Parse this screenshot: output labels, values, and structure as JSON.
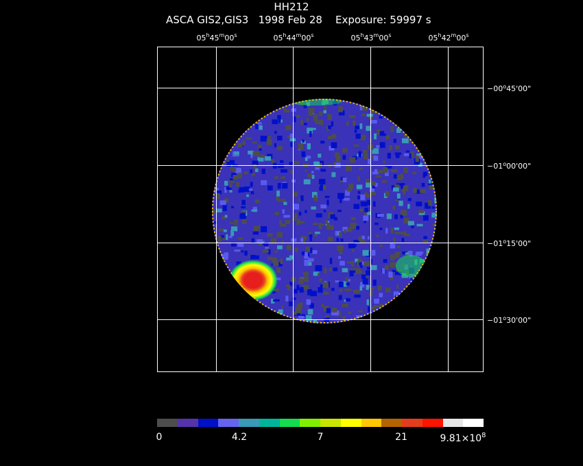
{
  "header": {
    "target": "HH212",
    "subtitle": "ASCA GIS2,GIS3   1998 Feb 28    Exposure: 59997 s"
  },
  "ra_ticks": [
    {
      "h": "05",
      "m": "45",
      "s": "00"
    },
    {
      "h": "05",
      "m": "44",
      "s": "00"
    },
    {
      "h": "05",
      "m": "43",
      "s": "00"
    },
    {
      "h": "05",
      "m": "42",
      "s": "00"
    }
  ],
  "dec_ticks": [
    {
      "d": "−00",
      "m": "45",
      "s": "00"
    },
    {
      "d": "−01",
      "m": "00",
      "s": "00"
    },
    {
      "d": "−01",
      "m": "15",
      "s": "00"
    },
    {
      "d": "−01",
      "m": "30",
      "s": "00"
    }
  ],
  "colorbar": {
    "colors": [
      "#4d4d4d",
      "#5533aa",
      "#0010c8",
      "#6464f0",
      "#3a98b8",
      "#00b49a",
      "#14dc50",
      "#80f000",
      "#c8e600",
      "#ffff00",
      "#ffc800",
      "#b46400",
      "#e63c1e",
      "#ff1400",
      "#e6e6e6",
      "#ffffff"
    ],
    "labels": [
      "0",
      "4.2",
      "7",
      "21"
    ],
    "max_mantissa": "9.81",
    "max_times": "×10",
    "max_exponent": "8"
  },
  "image": {
    "dominant_colors": [
      "#4d4d4d",
      "#3030c0",
      "#0010c8"
    ],
    "source_color": "#e61e1e",
    "grid_color": "#ffffff"
  }
}
